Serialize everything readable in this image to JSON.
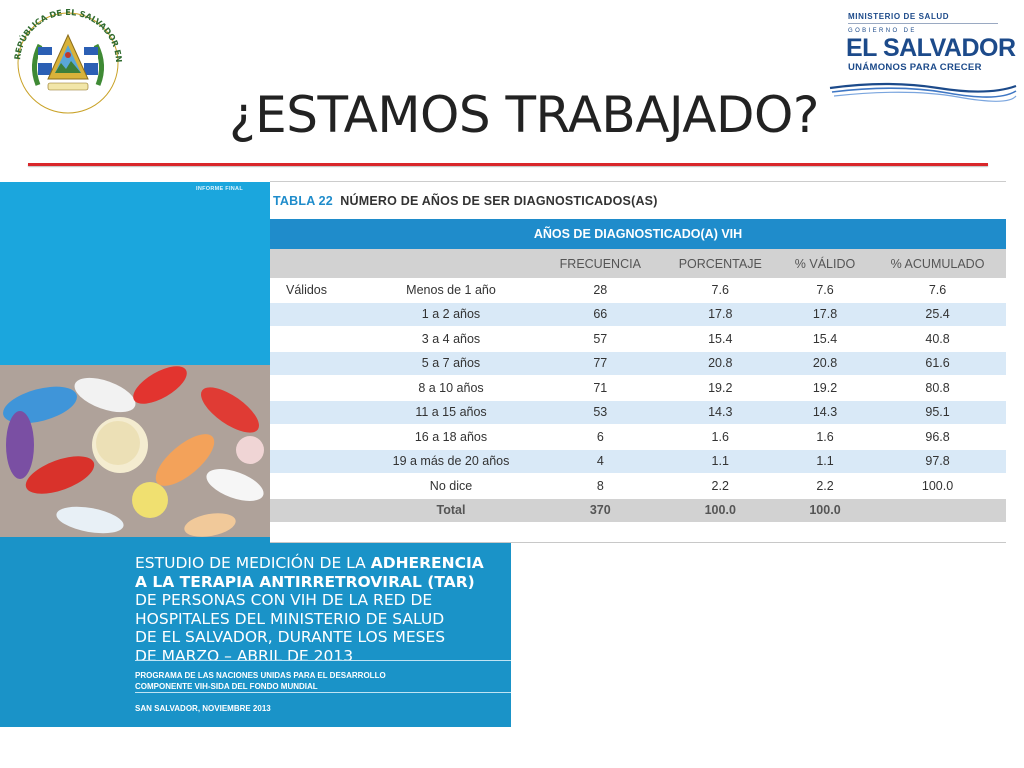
{
  "header": {
    "seal_text": "REPÚBLICA DE EL SALVADOR EN LA AMÉRICA CENTRAL",
    "gov_logo": {
      "ministry": "MINISTERIO DE SALUD",
      "gobierno": "GOBIERNO DE",
      "country": "EL SALVADOR",
      "slogan": "UNÁMONOS PARA CRECER"
    },
    "title": "¿ESTAMOS TRABAJADO?",
    "rule_color": "#d9262a"
  },
  "cover": {
    "informe": "INFORME FINAL",
    "study_line1_a": "ESTUDIO DE MEDICIÓN DE LA ",
    "study_line1_b": "ADHERENCIA",
    "study_line2": "A LA TERAPIA ANTIRRETROVIRAL (TAR)",
    "study_line3": "DE PERSONAS CON VIH DE LA RED DE",
    "study_line4": "HOSPITALES DEL MINISTERIO DE SALUD",
    "study_line5": "DE EL SALVADOR, DURANTE LOS MESES",
    "study_line6": "DE MARZO – ABRIL DE 2013",
    "program_line1": "PROGRAMA DE LAS NACIONES UNIDAS PARA EL DESARROLLO",
    "program_line2": "COMPONENTE VIH-SIDA DEL FONDO MUNDIAL",
    "date": "SAN SALVADOR, NOVIEMBRE 2013",
    "colors": {
      "top": "#1ba6dd",
      "band": "#1a93c8"
    }
  },
  "table": {
    "caption_num": "TABLA 22",
    "caption_text": "NÚMERO DE AÑOS DE SER DIAGNOSTICADOS(AS)",
    "group_header": "AÑOS DE DIAGNOSTICADO(A) VIH",
    "columns": [
      "FRECUENCIA",
      "PORCENTAJE",
      "% VÁLIDO",
      "% ACUMULADO"
    ],
    "valid_label": "Válidos",
    "rows": [
      [
        "Menos de 1 año",
        "28",
        "7.6",
        "7.6",
        "7.6"
      ],
      [
        "1 a 2 años",
        "66",
        "17.8",
        "17.8",
        "25.4"
      ],
      [
        "3 a 4 años",
        "57",
        "15.4",
        "15.4",
        "40.8"
      ],
      [
        "5 a 7 años",
        "77",
        "20.8",
        "20.8",
        "61.6"
      ],
      [
        "8 a 10 años",
        "71",
        "19.2",
        "19.2",
        "80.8"
      ],
      [
        "11 a  15 años",
        "53",
        "14.3",
        "14.3",
        "95.1"
      ],
      [
        "16 a 18 años",
        "6",
        "1.6",
        "1.6",
        "96.8"
      ],
      [
        "19 a más de 20 años",
        "4",
        "1.1",
        "1.1",
        "97.8"
      ],
      [
        "No dice",
        "8",
        "2.2",
        "2.2",
        "100.0"
      ]
    ],
    "total": [
      "Total",
      "370",
      "100.0",
      "100.0",
      ""
    ],
    "colors": {
      "header": "#1f8ccb",
      "stripe": "#d9e9f7",
      "subheader": "#d2d2d2"
    }
  }
}
